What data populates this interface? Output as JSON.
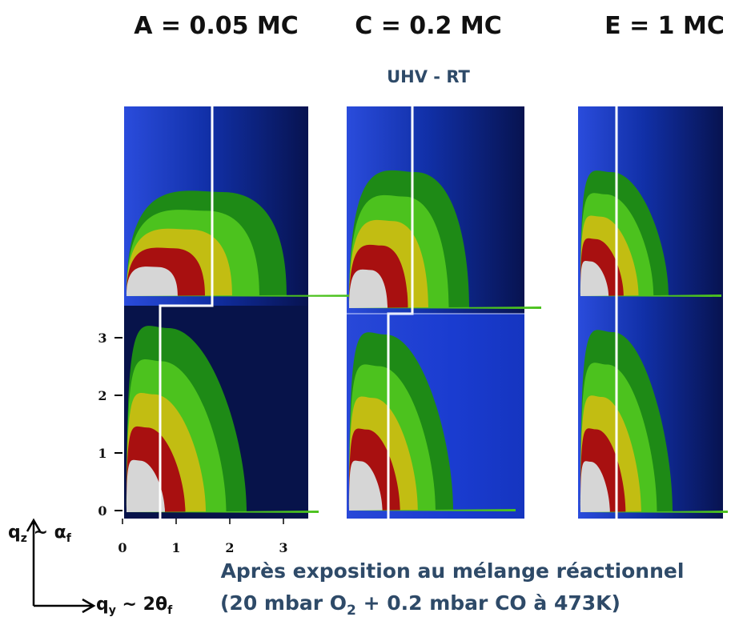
{
  "titles": [
    "A = 0.05 MC",
    "C = 0.2 MC",
    "E = 1 MC"
  ],
  "subtitle": "UHV - RT",
  "axes": {
    "yticks": [
      0,
      1,
      2,
      3
    ],
    "xticks": [
      0,
      1,
      2,
      3
    ],
    "y_label": {
      "q": "q",
      "q_sub": "z",
      "rest": " ~ α",
      "rest_sub": "f"
    },
    "x_label": {
      "q": "q",
      "q_sub": "y",
      "rest": " ~ 2θ",
      "rest_sub": "f"
    }
  },
  "caption": {
    "line1": "Après exposition au mélange réactionnel",
    "line2": {
      "before": "(20 mbar O",
      "sub": "2",
      "after": " + 0.2 mbar CO à 473K)"
    }
  }
}
